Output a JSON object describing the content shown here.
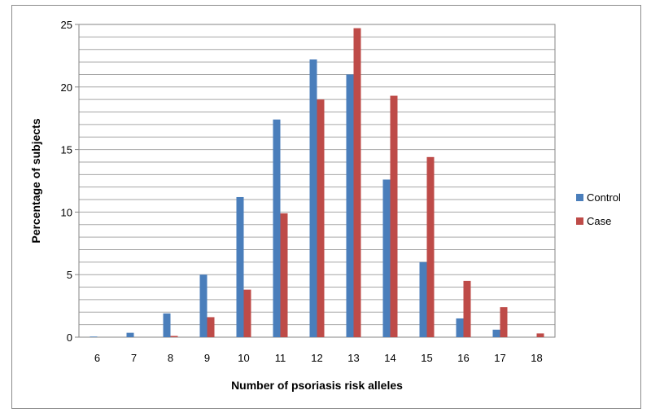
{
  "chart_data": {
    "type": "bar",
    "title": "",
    "xlabel": "Number of psoriasis risk alleles",
    "ylabel": "Percentage of subjects",
    "categories": [
      "6",
      "7",
      "8",
      "9",
      "10",
      "11",
      "12",
      "13",
      "14",
      "15",
      "16",
      "17",
      "18"
    ],
    "series": [
      {
        "name": "Control",
        "color": "#4a7ebb",
        "values": [
          0.05,
          0.35,
          1.9,
          5.0,
          11.2,
          17.4,
          22.2,
          21.0,
          12.6,
          6.0,
          1.5,
          0.6,
          0.0
        ]
      },
      {
        "name": "Case",
        "color": "#be4b48",
        "values": [
          0.0,
          0.0,
          0.1,
          1.6,
          3.8,
          9.9,
          19.0,
          24.7,
          19.3,
          14.4,
          4.5,
          2.4,
          0.3
        ]
      }
    ],
    "ylim": [
      0,
      25
    ],
    "yticks": [
      0,
      5,
      10,
      15,
      20,
      25
    ],
    "minor_grid_step": 1,
    "grid": true,
    "legend_position": "right"
  }
}
